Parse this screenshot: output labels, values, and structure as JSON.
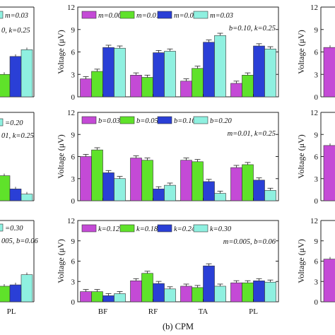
{
  "colors": {
    "c1": "#c44ad6",
    "c2": "#5fe22a",
    "c3": "#2a3fd6",
    "c4": "#8ff0e0"
  },
  "caption": "(b) CPM",
  "chart_data": [
    {
      "type": "bar",
      "panel": "top-center",
      "categories": [
        "BF",
        "RF",
        "TA",
        "PL"
      ],
      "ylabel": "Voltage (μV)",
      "ylim": [
        0,
        12
      ],
      "yticks": [
        "0",
        "3",
        "6",
        "9",
        "12"
      ],
      "legend": [
        "m=0.001",
        "m=0.01",
        "m=0.02",
        "m=0.03"
      ],
      "note": "b=0.10, k=0.25",
      "series": [
        {
          "name": "m=0.001",
          "values": [
            2.4,
            2.9,
            2.1,
            1.8
          ]
        },
        {
          "name": "m=0.01",
          "values": [
            3.4,
            2.6,
            3.8,
            2.9
          ]
        },
        {
          "name": "m=0.02",
          "values": [
            6.6,
            5.9,
            7.3,
            6.8
          ]
        },
        {
          "name": "m=0.03",
          "values": [
            6.5,
            6.1,
            8.2,
            6.4
          ]
        }
      ]
    },
    {
      "type": "bar",
      "panel": "middle-center",
      "categories": [
        "BF",
        "RF",
        "TA",
        "PL"
      ],
      "ylabel": "Voltage (μV)",
      "ylim": [
        0,
        12
      ],
      "yticks": [
        "0",
        "3",
        "6",
        "9",
        "12"
      ],
      "legend": [
        "b=0.03",
        "b=0.05",
        "b=0.10",
        "b=0.20"
      ],
      "note": "m=0.01, k=0.25",
      "series": [
        {
          "name": "b=0.03",
          "values": [
            6.0,
            5.8,
            5.5,
            4.5
          ]
        },
        {
          "name": "b=0.05",
          "values": [
            6.9,
            5.5,
            5.3,
            4.9
          ]
        },
        {
          "name": "b=0.10",
          "values": [
            3.8,
            1.6,
            2.6,
            2.8
          ]
        },
        {
          "name": "b=0.20",
          "values": [
            3.0,
            2.1,
            1.0,
            1.4
          ]
        }
      ]
    },
    {
      "type": "bar",
      "panel": "bottom-center",
      "categories": [
        "BF",
        "RF",
        "TA",
        "PL"
      ],
      "ylabel": "Voltage (μV)",
      "ylim": [
        0,
        12
      ],
      "yticks": [
        "0",
        "3",
        "6",
        "9",
        "12"
      ],
      "legend": [
        "k=0.12",
        "k=0.18",
        "k=0.24",
        "k=0.30"
      ],
      "note": "m=0.005, b=0.06",
      "series": [
        {
          "name": "k=0.12",
          "values": [
            1.5,
            3.1,
            2.3,
            2.8
          ]
        },
        {
          "name": "k=0.18",
          "values": [
            1.5,
            4.2,
            2.1,
            2.8
          ]
        },
        {
          "name": "k=0.24",
          "values": [
            0.9,
            2.7,
            5.3,
            3.1
          ]
        },
        {
          "name": "k=0.30",
          "values": [
            1.2,
            1.9,
            2.3,
            2.9
          ]
        }
      ]
    },
    {
      "type": "bar",
      "panel": "left-partial",
      "legend_top": "m=0.03",
      "note_top": "0, k=0.25",
      "legend_mid": "=0.20",
      "note_mid": "01, k=0.25",
      "legend_bot": "=0.30",
      "note_bot": "005, b=0.06",
      "categories": [
        "PL"
      ],
      "top_values": [
        3.0,
        5.4,
        6.3
      ],
      "mid_values": [
        3.4,
        1.6,
        0.9
      ],
      "bot_values": [
        2.3,
        2.5,
        4.0
      ]
    },
    {
      "type": "bar",
      "panel": "right-partial",
      "yticks": [
        "0",
        "3",
        "6",
        "9",
        "12"
      ],
      "ylabel": "Voltage (μV)",
      "top_values": [
        6.6
      ],
      "mid_values": [
        7.5
      ],
      "bot_values": [
        6.3
      ]
    }
  ]
}
